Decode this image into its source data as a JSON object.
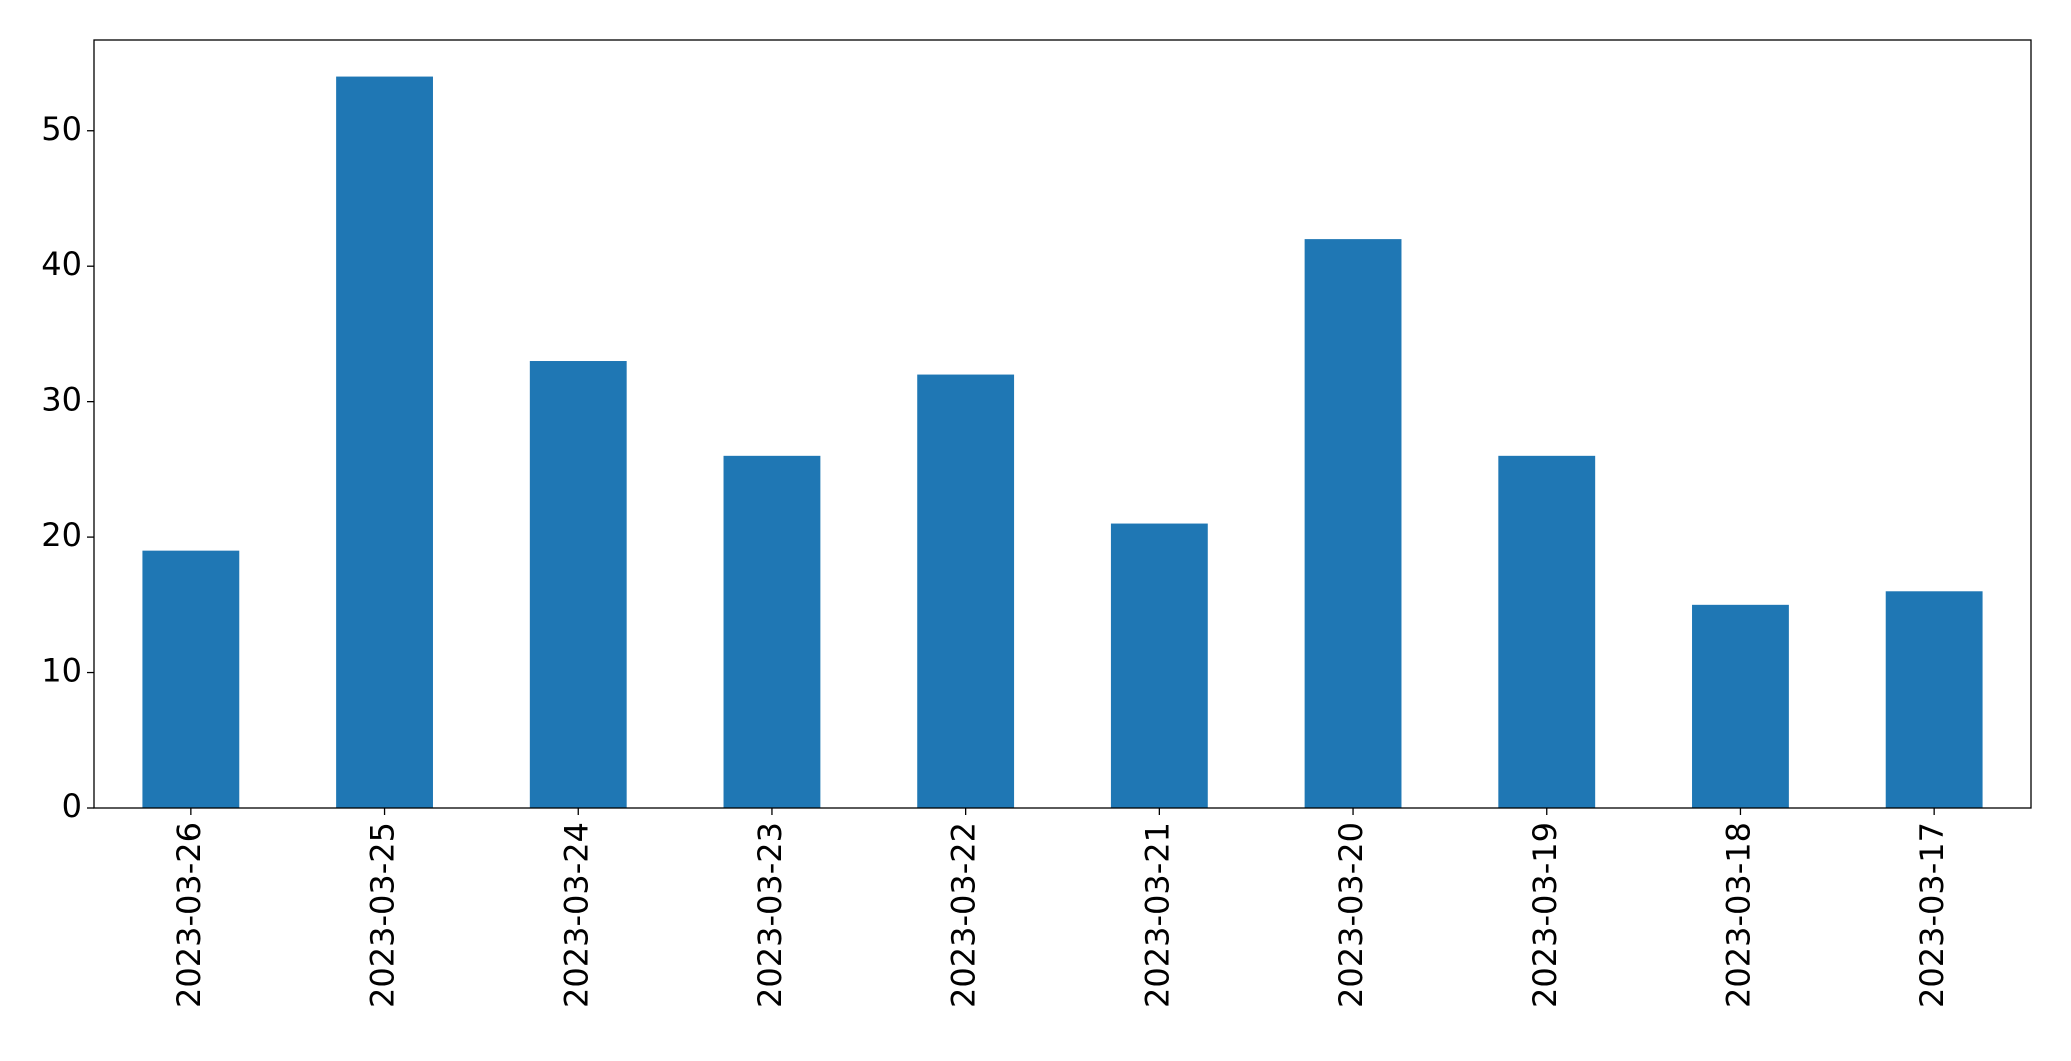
{
  "chart_data": {
    "type": "bar",
    "categories": [
      "2023-03-26",
      "2023-03-25",
      "2023-03-24",
      "2023-03-23",
      "2023-03-22",
      "2023-03-21",
      "2023-03-20",
      "2023-03-19",
      "2023-03-18",
      "2023-03-17"
    ],
    "values": [
      19,
      54,
      33,
      26,
      32,
      21,
      42,
      26,
      15,
      16
    ],
    "color": "#1f77b4",
    "ylim": [
      0,
      56.7
    ],
    "yticks": [
      0,
      10,
      20,
      30,
      40,
      50
    ],
    "grid": false
  }
}
